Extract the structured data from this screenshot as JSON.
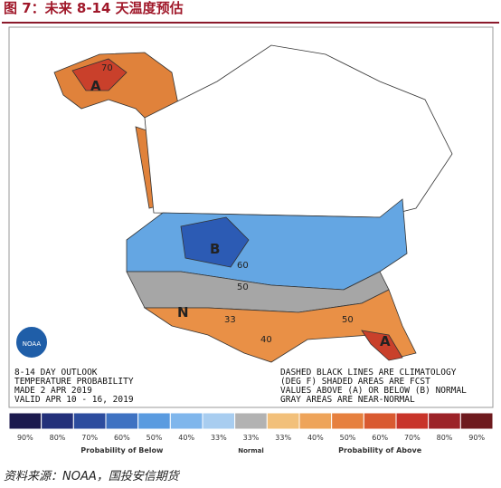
{
  "header": {
    "title": "图 7：未来 8-14 天温度预估"
  },
  "map": {
    "logo": "NOAA",
    "labels": [
      "A",
      "B",
      "N",
      "A",
      "70",
      "60",
      "50",
      "40",
      "33",
      "50"
    ],
    "title_lines": [
      "8-14 DAY OUTLOOK",
      "TEMPERATURE PROBABILITY",
      "MADE   2 APR 2019",
      "VALID   APR 10 - 16, 2019"
    ],
    "note_lines": [
      "DASHED BLACK LINES ARE CLIMATOLOGY",
      "(DEG F) SHADED AREAS ARE FCST",
      "VALUES ABOVE (A) OR BELOW (B) NORMAL",
      "GRAY AREAS ARE NEAR-NORMAL"
    ]
  },
  "legend": {
    "labels": [
      "90%",
      "80%",
      "70%",
      "60%",
      "50%",
      "40%",
      "33%",
      "33%",
      "33%",
      "40%",
      "50%",
      "60%",
      "70%",
      "80%",
      "90%"
    ],
    "colors": [
      "#1c1a4e",
      "#23307a",
      "#2c4c9e",
      "#3e72c2",
      "#5a9be0",
      "#7fb6ec",
      "#a8cdf0",
      "#b2b2b2",
      "#f2c07a",
      "#eea45a",
      "#e6803e",
      "#d95a30",
      "#c8342a",
      "#9c2328",
      "#6e1a1e"
    ],
    "captions": [
      "Probability of Below",
      "Normal",
      "Probability of Above"
    ]
  },
  "footer": {
    "source": "资料来源：NOAA，国投安信期货"
  }
}
